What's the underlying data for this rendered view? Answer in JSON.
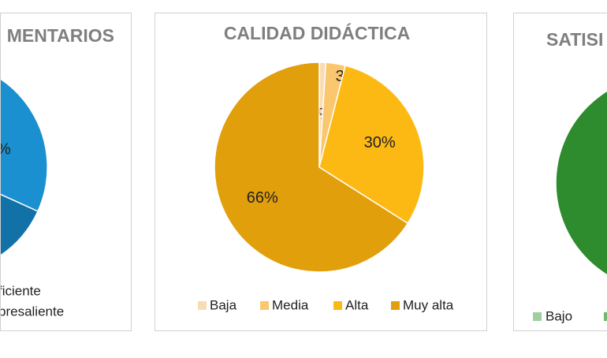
{
  "chart_data": {
    "type": "pie",
    "title": "CALIDAD DIDÁCTICA",
    "categories": [
      "Baja",
      "Media",
      "Alta",
      "Muy alta"
    ],
    "values": [
      1,
      3,
      30,
      66
    ],
    "value_labels": [
      "1%",
      "3%",
      "30%",
      "66%"
    ],
    "colors": [
      "#f9dcb4",
      "#fac66e",
      "#fdb913",
      "#e29f0c"
    ]
  },
  "left_panel": {
    "title": "MENTARIOS",
    "slice_label": "%",
    "legend": [
      "ficiente",
      "bresaliente"
    ]
  },
  "right_panel": {
    "title": "SATISI",
    "legend": [
      "Bajo"
    ]
  }
}
